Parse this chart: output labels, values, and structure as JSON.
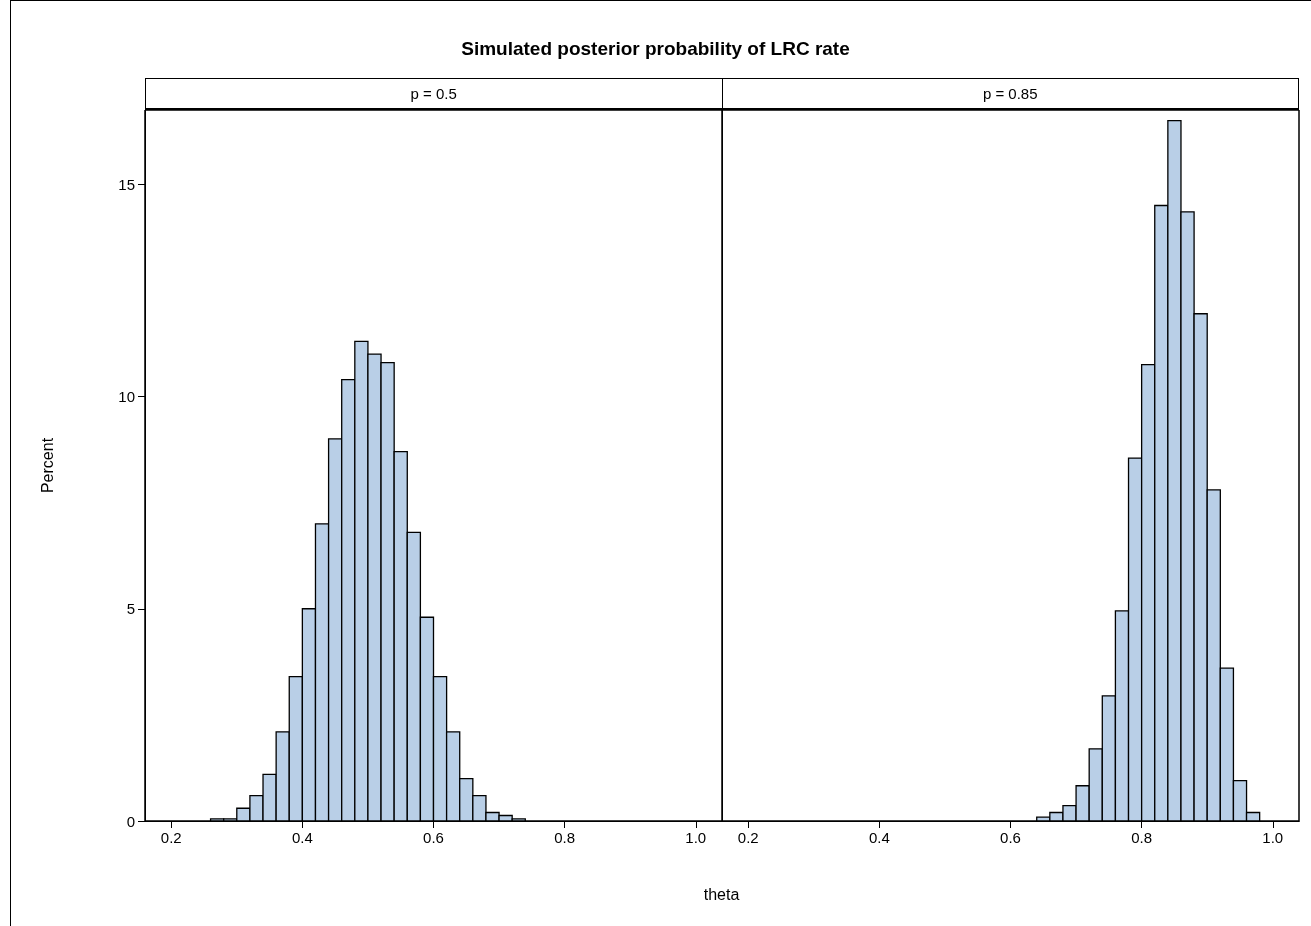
{
  "chart_data": [
    {
      "type": "histogram",
      "title": "Simulated posterior probability of LRC rate",
      "subtitle": "p = 0.5",
      "ylabel": "Percent",
      "color": "#b9cfe7",
      "bins": [
        0.26,
        0.28,
        0.3,
        0.32,
        0.34,
        0.36,
        0.38,
        0.4,
        0.42,
        0.44,
        0.46,
        0.48,
        0.5,
        0.52,
        0.54,
        0.56,
        0.58,
        0.6,
        0.62,
        0.64,
        0.66,
        0.68,
        0.7,
        0.72,
        0.74
      ],
      "values": [
        0.05,
        0.05,
        0.3,
        0.6,
        1.1,
        2.1,
        3.4,
        5.0,
        7.0,
        9.0,
        10.4,
        11.3,
        11.0,
        10.8,
        8.7,
        6.8,
        4.8,
        3.4,
        2.1,
        1.0,
        0.6,
        0.2,
        0.13,
        0.05
      ],
      "xlim": [
        0.16,
        1.04
      ],
      "xticks": [
        0.2,
        0.4,
        0.6,
        0.8,
        {
          "value": 1.0,
          "label": "1.0"
        }
      ],
      "ylim": [
        0,
        16.75
      ],
      "yticks": [
        0,
        5,
        10,
        15
      ],
      "grid": false
    },
    {
      "type": "histogram",
      "subtitle": "p = 0.85",
      "xlabel": "theta",
      "color": "#b9cfe7",
      "bins": [
        0.64,
        0.66,
        0.68,
        0.7,
        0.72,
        0.74,
        0.76,
        0.78,
        0.8,
        0.82,
        0.84,
        0.86,
        0.88,
        0.9,
        0.92,
        0.94,
        0.96,
        0.98
      ],
      "values": [
        0.09,
        0.2,
        0.36,
        0.83,
        1.7,
        2.95,
        4.95,
        8.55,
        10.75,
        14.5,
        16.5,
        14.35,
        11.95,
        7.8,
        3.6,
        0.95,
        0.2
      ],
      "xlim": [
        0.16,
        1.04
      ],
      "xticks": [
        0.2,
        0.4,
        0.6,
        0.8,
        {
          "value": 1.0,
          "label": "1.0"
        }
      ],
      "ylim": [
        0,
        16.75
      ],
      "yticks": [
        0,
        5,
        10,
        15
      ],
      "grid": false,
      "tick_labels": "x"
    }
  ]
}
